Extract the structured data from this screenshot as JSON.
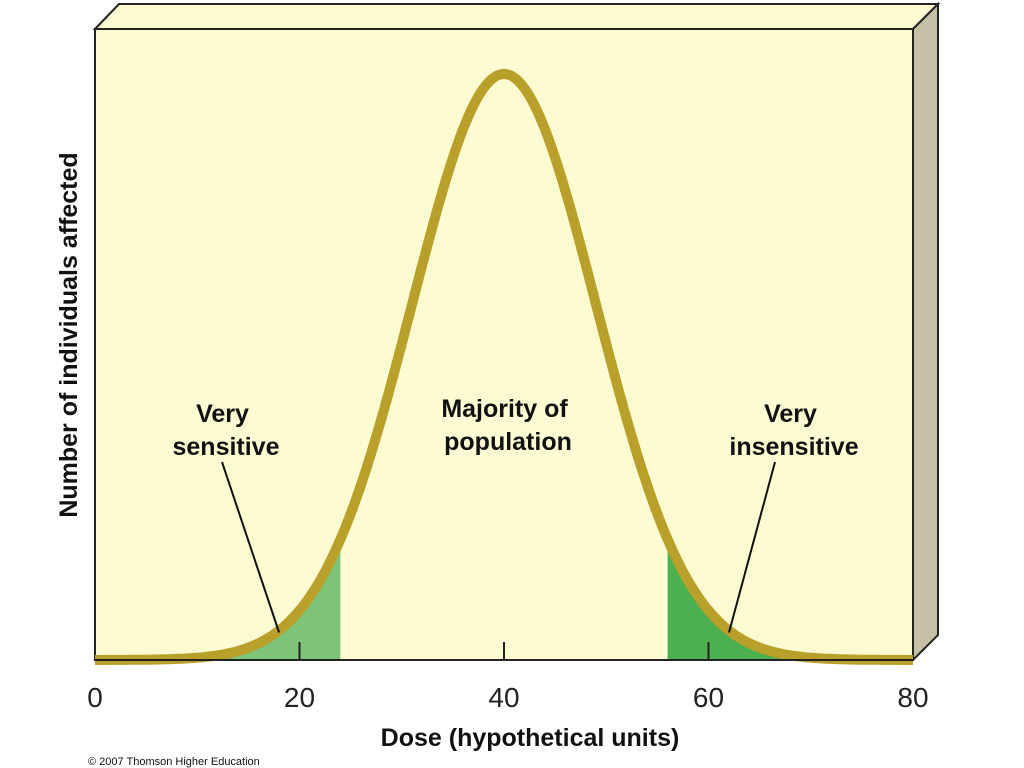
{
  "chart_data": {
    "type": "area",
    "xlabel": "Dose (hypothetical units)",
    "ylabel": "Number of individuals affected",
    "xlim": [
      0,
      80
    ],
    "ylim": [
      0,
      1.0
    ],
    "xticks": [
      {
        "value": 0,
        "label": "0"
      },
      {
        "value": 20,
        "label": "20"
      },
      {
        "value": 40,
        "label": "40"
      },
      {
        "value": 60,
        "label": "60"
      },
      {
        "value": 80,
        "label": "80"
      }
    ],
    "distribution": {
      "shape": "normal",
      "mean": 40,
      "sd": 9
    },
    "shaded_regions": [
      {
        "from": 0,
        "to": 24,
        "color": "#7dc47a"
      },
      {
        "from": 56,
        "to": 80,
        "color": "#4caf50"
      }
    ],
    "curve_color": "#b8a02a",
    "plot_background": "#fdfbd2",
    "grid": false,
    "annotations": [
      {
        "lines": [
          "Very",
          "sensitive"
        ],
        "points_to_x": 18
      },
      {
        "lines": [
          "Majority of",
          "population"
        ]
      },
      {
        "lines": [
          "Very",
          "insensitive"
        ],
        "points_to_x": 62
      }
    ]
  },
  "copyright": "© 2007 Thomson Higher Education"
}
